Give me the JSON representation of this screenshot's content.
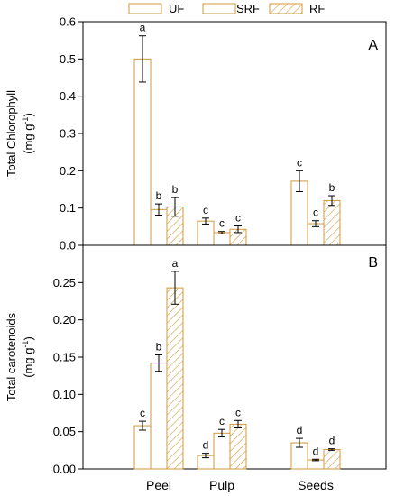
{
  "colors": {
    "bar_stroke": "#d09a3c",
    "bar_fill": "#ffffff",
    "hatch": "#d09a3c",
    "axis": "#000000",
    "error": "#000000"
  },
  "legend": {
    "placement": "top-center",
    "entries": [
      {
        "label": "UF",
        "pattern": "none"
      },
      {
        "label": "SRF",
        "pattern": "none"
      },
      {
        "label": "RF",
        "pattern": "hatch"
      }
    ]
  },
  "chart_data": [
    {
      "type": "bar",
      "panel_label": "A",
      "ylabel_line1": "Total Chlorophyll",
      "ylabel_line2": "(mg g",
      "ylabel_sup": "-1",
      "ylabel_close": ")",
      "categories": [
        "Peel",
        "Pulp",
        "Seeds"
      ],
      "ylim": [
        0,
        0.6
      ],
      "yticks": [
        0.0,
        0.1,
        0.2,
        0.3,
        0.4,
        0.5,
        0.6
      ],
      "ytick_labels": [
        "0.0",
        "0.1",
        "0.2",
        "0.3",
        "0.4",
        "0.5",
        "0.6"
      ],
      "series": [
        {
          "name": "UF",
          "values": [
            0.5,
            0.065,
            0.172
          ],
          "errors": [
            0.062,
            0.008,
            0.028
          ],
          "letters": [
            "a",
            "c",
            "c"
          ]
        },
        {
          "name": "SRF",
          "values": [
            0.096,
            0.034,
            0.058
          ],
          "errors": [
            0.015,
            0.003,
            0.008
          ],
          "letters": [
            "b",
            "c",
            "c"
          ]
        },
        {
          "name": "RF",
          "values": [
            0.103,
            0.043,
            0.12
          ],
          "errors": [
            0.025,
            0.009,
            0.013
          ],
          "letters": [
            "b",
            "c",
            "b"
          ]
        }
      ],
      "grid": false
    },
    {
      "type": "bar",
      "panel_label": "B",
      "ylabel_line1": "Total carotenoids",
      "ylabel_line2": "(mg g",
      "ylabel_sup": "-1",
      "ylabel_close": ")",
      "categories": [
        "Peel",
        "Pulp",
        "Seeds"
      ],
      "ylim": [
        0,
        0.3
      ],
      "yticks": [
        0.0,
        0.05,
        0.1,
        0.15,
        0.2,
        0.25
      ],
      "ytick_labels": [
        "0.00",
        "0.05",
        "0.10",
        "0.15",
        "0.20",
        "0.25"
      ],
      "series": [
        {
          "name": "UF",
          "values": [
            0.058,
            0.018,
            0.035
          ],
          "errors": [
            0.006,
            0.003,
            0.006
          ],
          "letters": [
            "c",
            "d",
            "d"
          ]
        },
        {
          "name": "SRF",
          "values": [
            0.142,
            0.048,
            0.012
          ],
          "errors": [
            0.011,
            0.005,
            0.001
          ],
          "letters": [
            "b",
            "c",
            "d"
          ]
        },
        {
          "name": "RF",
          "values": [
            0.243,
            0.06,
            0.026
          ],
          "errors": [
            0.022,
            0.005,
            0.001
          ],
          "letters": [
            "a",
            "c",
            "d"
          ]
        }
      ],
      "grid": false
    }
  ]
}
